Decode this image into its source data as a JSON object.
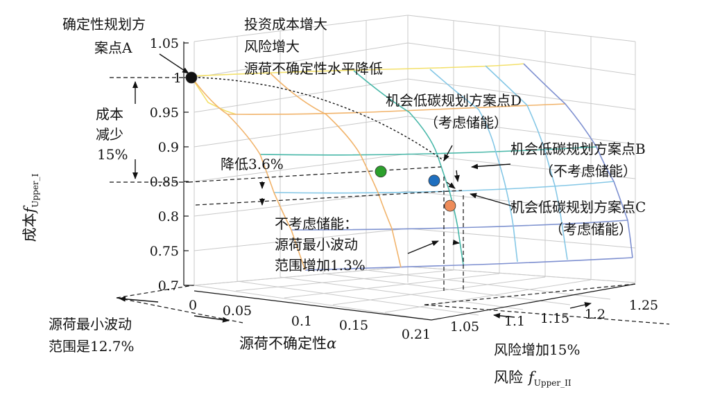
{
  "chart_data": {
    "type": "surface3d",
    "axes": {
      "z": {
        "label_main": "成本",
        "label_f": "f",
        "label_sub": "Upper_I",
        "ticks": [
          "0.7",
          "0.75",
          "0.8",
          "0.85",
          "0.9",
          "0.95",
          "1",
          "1.05"
        ],
        "range": [
          0.7,
          1.05
        ]
      },
      "alpha": {
        "label_main": "源荷不确定性",
        "label_var": "α",
        "ticks": [
          "0",
          "0.05",
          "0.1",
          "0.15",
          "0.21"
        ],
        "range": [
          0,
          0.21
        ]
      },
      "risk": {
        "label_main": "风险",
        "label_f": "f",
        "label_sub": "Upper_II",
        "ticks": [
          "1.05",
          "1.1",
          "1.15",
          "1.2",
          "1.25"
        ],
        "range": [
          1.0,
          1.25
        ]
      }
    },
    "surface": {
      "alpha": [
        0,
        0.05,
        0.1,
        0.15,
        0.21
      ],
      "risk": [
        1.0,
        1.05,
        1.1,
        1.15,
        1.2,
        1.25
      ],
      "cost": [
        [
          1.0,
          0.997,
          0.994,
          0.991,
          0.988,
          0.985
        ],
        [
          0.965,
          0.962,
          0.959,
          0.956,
          0.953,
          0.95
        ],
        [
          0.92,
          0.917,
          0.914,
          0.911,
          0.908,
          0.905
        ],
        [
          0.87,
          0.867,
          0.864,
          0.861,
          0.858,
          0.855
        ],
        [
          0.82,
          0.817,
          0.814,
          0.811,
          0.808,
          0.805
        ]
      ]
    },
    "points": [
      {
        "id": "A",
        "alpha": 0,
        "risk": 1.0,
        "cost": 1.0,
        "color": "#111111"
      },
      {
        "id": "D",
        "alpha": 0.127,
        "risk": 1.07,
        "cost": 0.865,
        "color": "#2ca02c"
      },
      {
        "id": "B",
        "alpha": 0.127,
        "risk": 1.15,
        "cost": 0.85,
        "color": "#1f6fbf"
      },
      {
        "id": "C",
        "alpha": 0.14,
        "risk": 1.15,
        "cost": 0.814,
        "color": "#ee8c5a"
      }
    ],
    "annotations": {
      "point_a": [
        "确定性规划方",
        "案点A"
      ],
      "trend": [
        "投资成本增大",
        "风险增大",
        "源荷不确定性水平降低"
      ],
      "point_d": [
        "机会低碳规划方案点D",
        "（考虑储能）"
      ],
      "point_b": [
        "机会低碳规划方案点B",
        "（不考虑储能）"
      ],
      "point_c": [
        "机会低碳规划方案点C",
        "（考虑储能）"
      ],
      "cost_reduce": [
        "成本",
        "减少",
        "15%"
      ],
      "reduce_36": "降低3.6%",
      "no_storage": [
        "不考虑储能：",
        "源荷最小波动",
        "范围增加1.3%"
      ],
      "min_fluct": [
        "源荷最小波动",
        "范围是12.7%"
      ],
      "risk_increase": "风险增加15%"
    }
  }
}
